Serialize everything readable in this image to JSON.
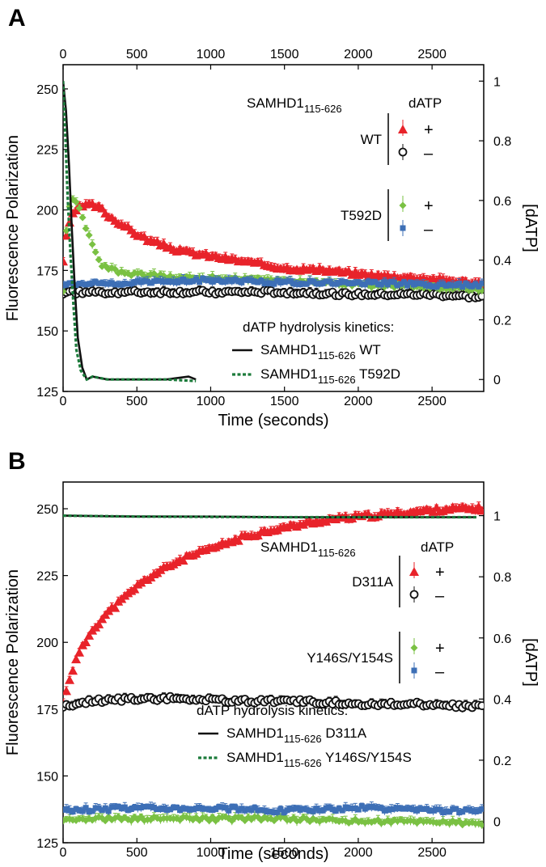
{
  "chart_data": [
    {
      "panel": "A",
      "type": "scatter",
      "xlabel": "Time (seconds)",
      "ylabel": "Fluorescence Polarization",
      "y2label": "[dATP]",
      "xlim": [
        0,
        2850
      ],
      "ylim": [
        125,
        260
      ],
      "y2lim": [
        -0.04,
        1.055
      ],
      "x_ticks": [
        0,
        500,
        1000,
        1500,
        2000,
        2500
      ],
      "x_tick_labels": [
        "0",
        "500",
        "1000",
        "1500",
        "2000",
        "2500"
      ],
      "top_ticks": [
        0,
        500,
        1000,
        1500,
        2000,
        2500
      ],
      "top_tick_labels": [
        "0",
        "500",
        "1000",
        "1500",
        "2000",
        "2500"
      ],
      "y_ticks": [
        125,
        150,
        175,
        200,
        225,
        250
      ],
      "y_tick_labels": [
        "125",
        "150",
        "175",
        "200",
        "225",
        "250"
      ],
      "y2_ticks": [
        0,
        0.2,
        0.4,
        0.6,
        0.8,
        1
      ],
      "y2_tick_labels": [
        "0",
        "0.2",
        "0.4",
        "0.6",
        "0.8",
        "1"
      ],
      "legend": {
        "header_protein": "SAMHD1",
        "header_sub": "115-626",
        "header_dATP": "dATP",
        "groups": [
          {
            "label": "WT",
            "plus": "+",
            "minus": "–"
          },
          {
            "label": "T592D",
            "plus": "+",
            "minus": "–"
          }
        ]
      },
      "kinetics_legend": {
        "title": "dATP hydrolysis kinetics:",
        "entries": [
          {
            "text": "SAMHD1",
            "sub": "115-626",
            "variant": "WT"
          },
          {
            "text": "SAMHD1",
            "sub": "115-626",
            "variant": "T592D"
          }
        ]
      },
      "series": [
        {
          "name": "WT +",
          "marker": "triangle",
          "color": "#e8232a",
          "axis": "left",
          "points": [
            [
              0,
              179
            ],
            [
              25,
              190
            ],
            [
              50,
              196
            ],
            [
              75,
              199
            ],
            [
              100,
              201
            ],
            [
              150,
              202
            ],
            [
              200,
              202
            ],
            [
              250,
              201
            ],
            [
              300,
              198
            ],
            [
              400,
              194
            ],
            [
              500,
              190
            ],
            [
              600,
              187
            ],
            [
              700,
              185
            ],
            [
              800,
              183
            ],
            [
              1000,
              181
            ],
            [
              1200,
              179
            ],
            [
              1500,
              176
            ],
            [
              1800,
              175
            ],
            [
              2100,
              173
            ],
            [
              2400,
              172
            ],
            [
              2800,
              170
            ]
          ]
        },
        {
          "name": "WT −",
          "marker": "circle",
          "color": "#111111",
          "axis": "left",
          "points": [
            [
              0,
              166
            ],
            [
              500,
              166
            ],
            [
              1000,
              166
            ],
            [
              1500,
              166
            ],
            [
              2000,
              165
            ],
            [
              2500,
              165
            ],
            [
              2800,
              164
            ]
          ]
        },
        {
          "name": "T592D +",
          "marker": "diamond",
          "color": "#7ac143",
          "axis": "left",
          "points": [
            [
              0,
              166
            ],
            [
              25,
              194
            ],
            [
              50,
              203
            ],
            [
              75,
              204
            ],
            [
              100,
              202
            ],
            [
              150,
              193
            ],
            [
              200,
              185
            ],
            [
              250,
              178
            ],
            [
              300,
              176
            ],
            [
              400,
              174
            ],
            [
              600,
              173
            ],
            [
              800,
              172
            ],
            [
              1000,
              172
            ],
            [
              1500,
              171
            ],
            [
              2000,
              169
            ],
            [
              2500,
              168
            ],
            [
              2800,
              167
            ]
          ]
        },
        {
          "name": "T592D −",
          "marker": "square",
          "color": "#3d6fb6",
          "axis": "left",
          "points": [
            [
              0,
              169
            ],
            [
              500,
              170
            ],
            [
              1000,
              171
            ],
            [
              1500,
              170
            ],
            [
              2000,
              170
            ],
            [
              2500,
              169
            ],
            [
              2800,
              169
            ]
          ]
        },
        {
          "name": "SAMHD1 115-626 WT kinetics",
          "line": "solid",
          "color": "#111111",
          "axis": "right",
          "points": [
            [
              0,
              1
            ],
            [
              20,
              0.9
            ],
            [
              40,
              0.72
            ],
            [
              60,
              0.5
            ],
            [
              80,
              0.3
            ],
            [
              100,
              0.14
            ],
            [
              130,
              0.04
            ],
            [
              160,
              0.0
            ],
            [
              200,
              0.01
            ],
            [
              300,
              0.0
            ],
            [
              500,
              0.0
            ],
            [
              700,
              0.0
            ],
            [
              850,
              0.01
            ],
            [
              900,
              0.0
            ]
          ]
        },
        {
          "name": "SAMHD1 115-626 T592D kinetics",
          "line": "dashed",
          "color": "#1c7b3b",
          "axis": "right",
          "points": [
            [
              0,
              1
            ],
            [
              15,
              0.82
            ],
            [
              30,
              0.62
            ],
            [
              50,
              0.42
            ],
            [
              70,
              0.25
            ],
            [
              90,
              0.1
            ],
            [
              120,
              0.03
            ],
            [
              160,
              0.0
            ],
            [
              200,
              0.01
            ],
            [
              300,
              0.0
            ],
            [
              500,
              0.0
            ],
            [
              700,
              0.0
            ],
            [
              900,
              -0.005
            ]
          ]
        }
      ]
    },
    {
      "panel": "B",
      "type": "scatter",
      "xlabel": "Time (seconds)",
      "ylabel": "Fluorescence Polarization",
      "y2label": "[dATP]",
      "xlim": [
        0,
        2850
      ],
      "ylim": [
        125,
        260
      ],
      "y2lim": [
        -0.07,
        1.11
      ],
      "x_ticks": [
        0,
        500,
        1000,
        1500,
        2000,
        2500
      ],
      "x_tick_labels": [
        "0",
        "500",
        "1000",
        "1500",
        "2000",
        "2500"
      ],
      "y_ticks": [
        125,
        150,
        175,
        200,
        225,
        250
      ],
      "y_tick_labels": [
        "125",
        "150",
        "175",
        "200",
        "225",
        "250"
      ],
      "y2_ticks": [
        0,
        0.2,
        0.4,
        0.6,
        0.8,
        1
      ],
      "y2_tick_labels": [
        "0",
        "0.2",
        "0.4",
        "0.6",
        "0.8",
        "1"
      ],
      "legend": {
        "header_protein": "SAMHD1",
        "header_sub": "115-626",
        "header_dATP": "dATP",
        "groups": [
          {
            "label": "D311A",
            "plus": "+",
            "minus": "–"
          },
          {
            "label": "Y146S/Y154S",
            "plus": "+",
            "minus": "–"
          }
        ]
      },
      "kinetics_legend": {
        "title": "dATP hydrolysis kinetics:",
        "entries": [
          {
            "text": "SAMHD1",
            "sub": "115-626",
            "variant": "D311A"
          },
          {
            "text": "SAMHD1",
            "sub": "115-626",
            "variant": "Y146S/Y154S"
          }
        ]
      },
      "series": [
        {
          "name": "D311A +",
          "marker": "triangle",
          "color": "#e8232a",
          "axis": "left",
          "points": [
            [
              0,
              177
            ],
            [
              30,
              184
            ],
            [
              60,
              189
            ],
            [
              100,
              195
            ],
            [
              150,
              200
            ],
            [
              200,
              205
            ],
            [
              300,
              211
            ],
            [
              400,
              216
            ],
            [
              500,
              221
            ],
            [
              600,
              225
            ],
            [
              800,
              231
            ],
            [
              1000,
              235
            ],
            [
              1200,
              239
            ],
            [
              1400,
              242
            ],
            [
              1600,
              244
            ],
            [
              1800,
              246
            ],
            [
              2000,
              247
            ],
            [
              2200,
              248
            ],
            [
              2400,
              249
            ],
            [
              2600,
              250
            ],
            [
              2800,
              250
            ]
          ]
        },
        {
          "name": "D311A −",
          "marker": "circle",
          "color": "#111111",
          "axis": "left",
          "points": [
            [
              0,
              176
            ],
            [
              200,
              178
            ],
            [
              500,
              179
            ],
            [
              800,
              179
            ],
            [
              1200,
              178
            ],
            [
              1600,
              178
            ],
            [
              2000,
              177
            ],
            [
              2400,
              177
            ],
            [
              2800,
              176
            ]
          ]
        },
        {
          "name": "Y146S/Y154S +",
          "marker": "diamond",
          "color": "#7ac143",
          "axis": "left",
          "points": [
            [
              0,
              134
            ],
            [
              500,
              134
            ],
            [
              1000,
              134
            ],
            [
              1500,
              134
            ],
            [
              2000,
              133
            ],
            [
              2500,
              133
            ],
            [
              2800,
              132
            ]
          ]
        },
        {
          "name": "Y146S/Y154S −",
          "marker": "square",
          "color": "#3d6fb6",
          "axis": "left",
          "points": [
            [
              0,
              137
            ],
            [
              500,
              138
            ],
            [
              1000,
              138
            ],
            [
              1500,
              137
            ],
            [
              2000,
              138
            ],
            [
              2500,
              137
            ],
            [
              2800,
              137
            ]
          ]
        },
        {
          "name": "SAMHD1 115-626 D311A kinetics",
          "line": "solid",
          "color": "#111111",
          "axis": "right",
          "points": [
            [
              0,
              1
            ],
            [
              500,
              0.997
            ],
            [
              1000,
              0.997
            ],
            [
              1500,
              0.995
            ],
            [
              2000,
              0.995
            ],
            [
              2500,
              0.995
            ],
            [
              2800,
              0.995
            ]
          ]
        },
        {
          "name": "SAMHD1 115-626 Y146S/Y154S kinetics",
          "line": "dashed",
          "color": "#1c7b3b",
          "axis": "right",
          "points": [
            [
              0,
              1
            ],
            [
              500,
              0.997
            ],
            [
              1000,
              0.996
            ],
            [
              1500,
              0.995
            ],
            [
              2000,
              0.995
            ],
            [
              2500,
              0.995
            ],
            [
              2800,
              0.995
            ]
          ]
        }
      ]
    }
  ]
}
